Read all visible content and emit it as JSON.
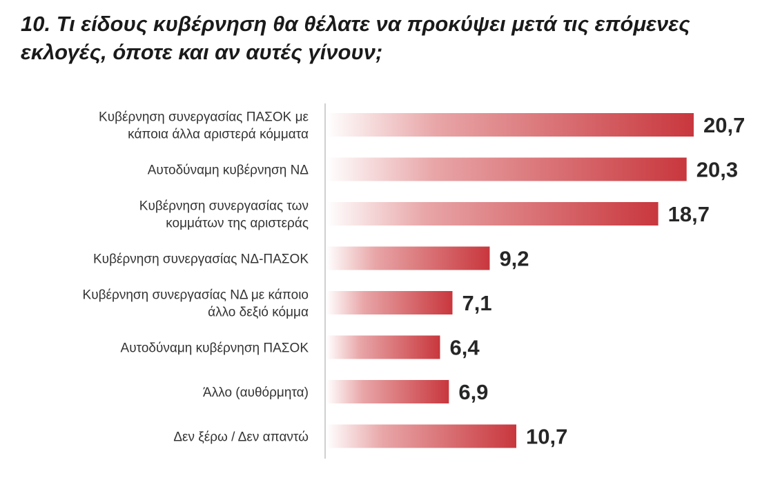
{
  "chart_data": {
    "type": "bar",
    "orientation": "horizontal",
    "title": "10. Τι είδους κυβέρνηση θα θέλατε να προκύψει μετά τις επόμενες εκλογές, όποτε και αν αυτές γίνουν;",
    "categories": [
      [
        "Κυβέρνηση συνεργασίας ΠΑΣΟΚ με",
        "κάποια άλλα αριστερά κόμματα"
      ],
      [
        "Αυτοδύναμη κυβέρνηση ΝΔ"
      ],
      [
        "Κυβέρνηση συνεργασίας των",
        "κομμάτων της αριστεράς"
      ],
      [
        "Κυβέρνηση συνεργασίας ΝΔ-ΠΑΣΟΚ"
      ],
      [
        "Κυβέρνηση συνεργασίας ΝΔ με κάποιο",
        "άλλο δεξιό κόμμα"
      ],
      [
        "Αυτοδύναμη κυβέρνηση ΠΑΣΟΚ"
      ],
      [
        "Άλλο (αυθόρμητα)"
      ],
      [
        "Δεν ξέρω / Δεν απαντώ"
      ]
    ],
    "values": [
      20.7,
      20.3,
      18.7,
      9.2,
      7.1,
      6.4,
      6.9,
      10.7
    ],
    "value_labels": [
      "20,7",
      "20,3",
      "18,7",
      "9,2",
      "7,1",
      "6,4",
      "6,9",
      "10,7"
    ],
    "xlim": [
      0,
      20.7
    ],
    "bar_color": "#c8373d",
    "bar_fade_color": "#ffffff",
    "grid": false,
    "legend": "none"
  }
}
